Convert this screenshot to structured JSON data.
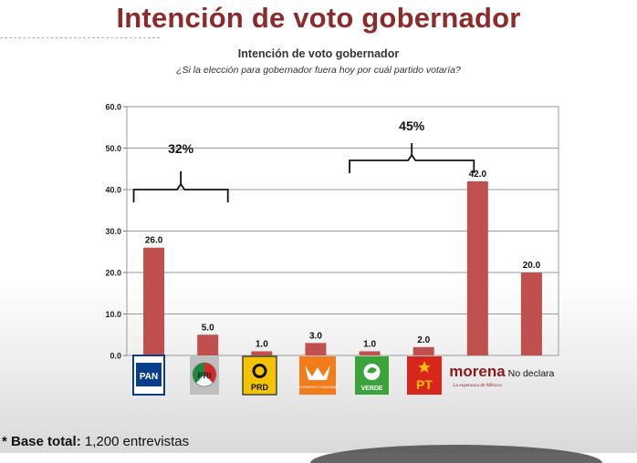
{
  "slide": {
    "title": "Intención de voto gobernador"
  },
  "chart_data": {
    "type": "bar",
    "title": "Intención de voto  gobernador",
    "subtitle": "¿Si la elección para gobernador fuera hoy por cuál partido votaría?",
    "categories": [
      "PAN",
      "PRI",
      "PRD",
      "MC",
      "VERDE",
      "PT",
      "morena",
      "No declara"
    ],
    "values": [
      26.0,
      5.0,
      1.0,
      3.0,
      1.0,
      2.0,
      42.0,
      20.0
    ],
    "value_labels": [
      "26.0",
      "5.0",
      "1.0",
      "3.0",
      "1.0",
      "2.0",
      "42.0",
      "20.0"
    ],
    "ylim": [
      0,
      60
    ],
    "yticks": [
      "0.0",
      "10.0",
      "20.0",
      "30.0",
      "40.0",
      "50.0",
      "60.0"
    ],
    "ytick_values": [
      0,
      10,
      20,
      30,
      40,
      50,
      60
    ],
    "grid": true,
    "bar_color": "#c0504d",
    "groups": [
      {
        "label": "32%",
        "from_category": 0,
        "to_category": 1
      },
      {
        "label": "45%",
        "from_category": 4,
        "to_category": 6
      }
    ],
    "logos": {
      "pan": {
        "text": "PAN",
        "color": "#0a3d8c"
      },
      "pri": {
        "text": "PRI",
        "colors": [
          "#1a8a3a",
          "#ffffff",
          "#d62828"
        ]
      },
      "prd": {
        "text": "PRD",
        "color": "#f5c400"
      },
      "mc": {
        "text": "MOVIMIENTO CIUDADANO",
        "color": "#f07c1a"
      },
      "verde": {
        "text": "VERDE",
        "color": "#3aa33a"
      },
      "pt": {
        "text": "PT",
        "color": "#d9261c"
      },
      "morena": {
        "text": "morena",
        "subtext": "La esperanza de México",
        "color": "#8c1a1a"
      },
      "no_declara": {
        "text": "No declara"
      }
    }
  },
  "footnote": {
    "label": "* Base total:",
    "value": " 1,200 entrevistas"
  }
}
